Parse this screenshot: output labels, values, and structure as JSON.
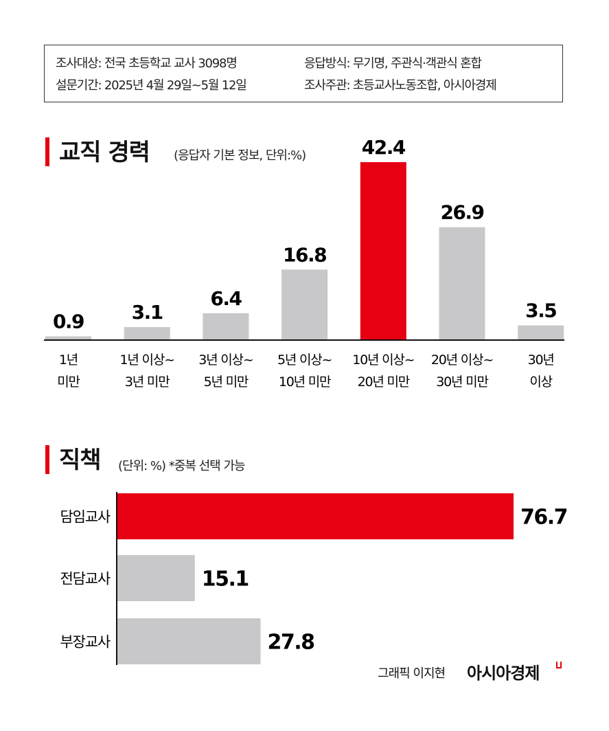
{
  "info": {
    "target": "조사대상: 전국 초등학교 교사 3098명",
    "period": "설문기간: 2025년 4월 29일~5월 12일",
    "method": "응답방식: 무기명, 주관식·객관식 혼합",
    "organizer": "조사주관: 초등교사노동조합, 아시아경제"
  },
  "colors": {
    "highlight": "#e60012",
    "default": "#c8c8ca"
  },
  "chart_data": [
    {
      "type": "bar",
      "orientation": "vertical",
      "title": "교직 경력",
      "subtitle": "(응답자 기본 정보, 단위:%)",
      "categories": [
        [
          "1년",
          "미만"
        ],
        [
          "1년 이상~",
          "3년 미만"
        ],
        [
          "3년 이상~",
          "5년 미만"
        ],
        [
          "5년 이상~",
          "10년 미만"
        ],
        [
          "10년 이상~",
          "20년 미만"
        ],
        [
          "20년 이상~",
          "30년 미만"
        ],
        [
          "30년",
          "이상"
        ]
      ],
      "values": [
        0.9,
        3.1,
        6.4,
        16.8,
        42.4,
        26.9,
        3.5
      ],
      "labels": [
        "0.9",
        "3.1",
        "6.4",
        "16.8",
        "42.4",
        "26.9",
        "3.5"
      ],
      "highlight_index": 4,
      "ylim": [
        0,
        42.4
      ],
      "grid": false
    },
    {
      "type": "bar",
      "orientation": "horizontal",
      "title": "직책",
      "subtitle": "(단위: %)  *중복 선택 가능",
      "categories": [
        "담임교사",
        "전담교사",
        "부장교사"
      ],
      "values": [
        76.7,
        15.1,
        27.8
      ],
      "labels": [
        "76.7",
        "15.1",
        "27.8"
      ],
      "highlight_index": 0,
      "xlim": [
        0,
        76.7
      ],
      "grid": false
    }
  ],
  "footer": {
    "credit": "그래픽 이지현",
    "logo": "아시아경제"
  }
}
